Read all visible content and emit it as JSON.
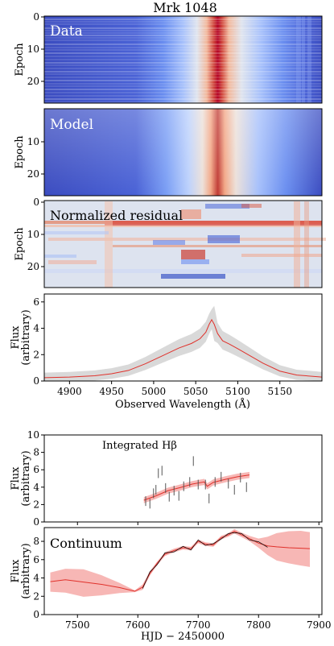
{
  "title": "Mrk 1048",
  "colors": {
    "line": "#e0312b",
    "band_gray": "#d9d9d9",
    "band_red": "#f7b7b5",
    "errbar": "#555555"
  },
  "chart_data": [
    {
      "type": "heatmap",
      "label": "Data",
      "ylabel": "Epoch",
      "yticks": [
        "0",
        "10",
        "20"
      ],
      "ylim": [
        0,
        27
      ],
      "xlim": [
        4870,
        5200
      ]
    },
    {
      "type": "heatmap",
      "label": "Model",
      "ylabel": "Epoch",
      "yticks": [
        "10",
        "20"
      ],
      "ylim": [
        0,
        27
      ],
      "xlim": [
        4870,
        5200
      ]
    },
    {
      "type": "heatmap",
      "label": "Normalized residual",
      "ylabel": "Epoch",
      "yticks": [
        "0",
        "10",
        "20"
      ],
      "ylim": [
        0,
        27
      ],
      "xlim": [
        4870,
        5200
      ]
    },
    {
      "type": "line",
      "ylabel": "Flux (arbitrary)",
      "ylabel_lines": [
        "Flux",
        "(arbitrary)"
      ],
      "xlabel": "Observed Wavelength (Å)",
      "xticks": [
        "4900",
        "4950",
        "5000",
        "5050",
        "5100",
        "5150"
      ],
      "yticks": [
        "0",
        "2",
        "4",
        "6"
      ],
      "xlim": [
        4870,
        5200
      ],
      "ylim": [
        0,
        6.6
      ],
      "x": [
        4870,
        4900,
        4930,
        4950,
        4970,
        4990,
        5010,
        5030,
        5045,
        5055,
        5062,
        5066,
        5069,
        5072,
        5076,
        5082,
        5090,
        5100,
        5115,
        5130,
        5150,
        5170,
        5200
      ],
      "y": [
        0.25,
        0.3,
        0.4,
        0.55,
        0.8,
        1.3,
        1.9,
        2.5,
        2.85,
        3.2,
        3.7,
        4.3,
        4.65,
        4.3,
        3.6,
        3.05,
        2.8,
        2.45,
        1.9,
        1.35,
        0.75,
        0.45,
        0.3
      ]
    },
    {
      "type": "scatter",
      "annotation": "Integrated Hβ",
      "ylabel": "Flux (arbitrary)",
      "ylabel_lines": [
        "Flux",
        "(arbitrary)"
      ],
      "yticks": [
        "0",
        "2",
        "4",
        "6",
        "8",
        "10"
      ],
      "xlim": [
        7445,
        7905
      ],
      "ylim": [
        0,
        10
      ],
      "x": [
        7613,
        7620,
        7626,
        7630,
        7634,
        7640,
        7646,
        7652,
        7660,
        7668,
        7676,
        7686,
        7692,
        7700,
        7712,
        7718,
        7728,
        7738,
        7750,
        7760,
        7770,
        7780
      ],
      "y": [
        2.4,
        2.1,
        3.3,
        3.7,
        5.6,
        5.9,
        3.9,
        2.9,
        3.6,
        3.0,
        4.1,
        4.6,
        7.0,
        4.3,
        4.3,
        2.7,
        4.6,
        5.2,
        4.4,
        3.7,
        5.1,
        4.0
      ],
      "model_x": [
        7610,
        7630,
        7650,
        7670,
        7690,
        7710,
        7715,
        7725,
        7745,
        7765,
        7785
      ],
      "model_y": [
        2.5,
        3.0,
        3.6,
        3.95,
        4.35,
        4.6,
        4.1,
        4.55,
        4.9,
        5.2,
        5.4
      ]
    },
    {
      "type": "line",
      "label": "Continuum",
      "ylabel": "Flux (arbitrary)",
      "ylabel_lines": [
        "Flux",
        "(arbitrary)"
      ],
      "xlabel": "HJD − 2450000",
      "xticks": [
        "7500",
        "7600",
        "7700",
        "7800",
        "7900"
      ],
      "yticks": [
        "0",
        "2",
        "4",
        "6",
        "8"
      ],
      "xlim": [
        7445,
        7905
      ],
      "ylim": [
        0,
        9.5
      ],
      "x": [
        7455,
        7480,
        7510,
        7540,
        7570,
        7595,
        7608,
        7620,
        7632,
        7645,
        7660,
        7675,
        7688,
        7700,
        7712,
        7725,
        7738,
        7750,
        7760,
        7772,
        7785,
        7800,
        7815,
        7830,
        7850,
        7870,
        7885
      ],
      "y": [
        3.6,
        3.8,
        3.55,
        3.3,
        2.95,
        2.55,
        3.0,
        4.5,
        5.6,
        6.6,
        7.0,
        7.3,
        7.2,
        8.0,
        7.7,
        7.6,
        8.4,
        8.7,
        9.1,
        8.7,
        8.3,
        7.8,
        7.5,
        7.4,
        7.3,
        7.25,
        7.2
      ],
      "err_lo": [
        1.1,
        1.4,
        1.6,
        1.2,
        0.6,
        0.1,
        0.3,
        0.25,
        0.2,
        0.2,
        0.2,
        0.2,
        0.2,
        0.2,
        0.2,
        0.2,
        0.2,
        0.2,
        0.25,
        0.25,
        0.3,
        0.5,
        1.0,
        1.5,
        1.7,
        1.9,
        2.0
      ],
      "err_hi": [
        1.0,
        1.2,
        1.4,
        1.0,
        0.5,
        0.1,
        0.3,
        0.25,
        0.2,
        0.2,
        0.2,
        0.2,
        0.2,
        0.2,
        0.2,
        0.2,
        0.2,
        0.2,
        0.25,
        0.25,
        0.3,
        0.5,
        1.0,
        1.5,
        1.8,
        1.9,
        1.8
      ]
    }
  ]
}
